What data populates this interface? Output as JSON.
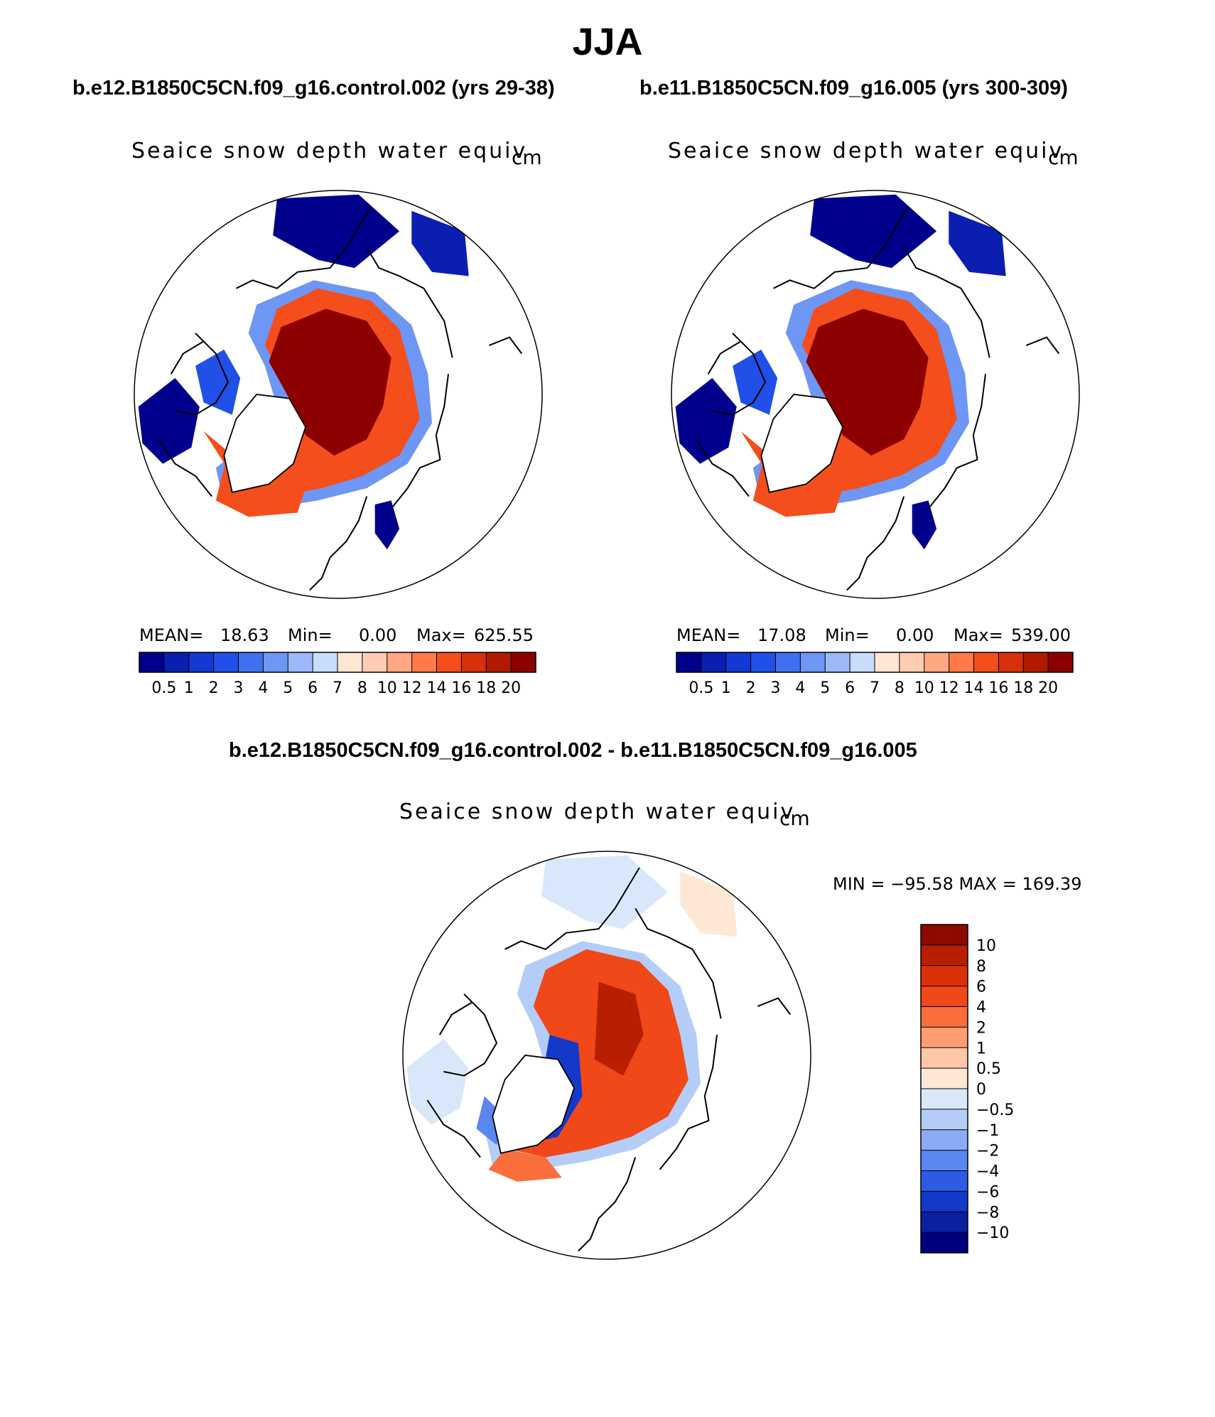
{
  "page": {
    "season": "JJA",
    "left_case_title": "b.e12.B1850C5CN.f09_g16.control.002 (yrs 29-38)",
    "right_case_title": "b.e11.B1850C5CN.f09_g16.005 (yrs 300-309)",
    "diff_title": "b.e12.B1850C5CN.f09_g16.control.002 - b.e11.B1850C5CN.f09_g16.005"
  },
  "chart_data": [
    {
      "type": "heatmap",
      "projection": "polar stereographic (north)",
      "title": "Seaice snow depth water equiv",
      "units": "cm",
      "stats": {
        "mean_label": "MEAN=",
        "mean": "18.63",
        "min_label": "Min=",
        "min": "0.00",
        "max_label": "Max=",
        "max": "625.55"
      },
      "levels": [
        "0.5",
        "1",
        "2",
        "3",
        "4",
        "5",
        "6",
        "7",
        "8",
        "10",
        "12",
        "14",
        "16",
        "18",
        "20"
      ],
      "colors": [
        "#00008c",
        "#0a1fb0",
        "#1438d2",
        "#2050e8",
        "#4070f0",
        "#6e96f4",
        "#9cb8f8",
        "#c8dcfb",
        "#ffe6d2",
        "#ffccb2",
        "#ffa882",
        "#ff7a48",
        "#f44e1c",
        "#d8300a",
        "#b01a00",
        "#8c0000"
      ]
    },
    {
      "type": "heatmap",
      "projection": "polar stereographic (north)",
      "title": "Seaice snow depth water equiv",
      "units": "cm",
      "stats": {
        "mean_label": "MEAN=",
        "mean": "17.08",
        "min_label": "Min=",
        "min": "0.00",
        "max_label": "Max=",
        "max": "539.00"
      },
      "levels": [
        "0.5",
        "1",
        "2",
        "3",
        "4",
        "5",
        "6",
        "7",
        "8",
        "10",
        "12",
        "14",
        "16",
        "18",
        "20"
      ],
      "colors": [
        "#00008c",
        "#0a1fb0",
        "#1438d2",
        "#2050e8",
        "#4070f0",
        "#6e96f4",
        "#9cb8f8",
        "#c8dcfb",
        "#ffe6d2",
        "#ffccb2",
        "#ffa882",
        "#ff7a48",
        "#f44e1c",
        "#d8300a",
        "#b01a00",
        "#8c0000"
      ]
    },
    {
      "type": "heatmap",
      "projection": "polar stereographic (north)",
      "title": "Seaice snow depth water equiv",
      "units": "cm",
      "stats_text": "MIN = −95.58 MAX = 169.39",
      "levels": [
        "10",
        "8",
        "6",
        "4",
        "2",
        "1",
        "0.5",
        "0",
        "−0.5",
        "−1",
        "−2",
        "−4",
        "−6",
        "−8",
        "−10"
      ],
      "colors": [
        "#8c0a00",
        "#b81e00",
        "#dc3008",
        "#f04818",
        "#fa6e3c",
        "#fc9c72",
        "#fdc6a8",
        "#fde8d6",
        "#d8e8fa",
        "#b4cdf8",
        "#8aacf4",
        "#5a86f0",
        "#2c5ce6",
        "#1438c8",
        "#0a20a0",
        "#00007e"
      ]
    }
  ]
}
